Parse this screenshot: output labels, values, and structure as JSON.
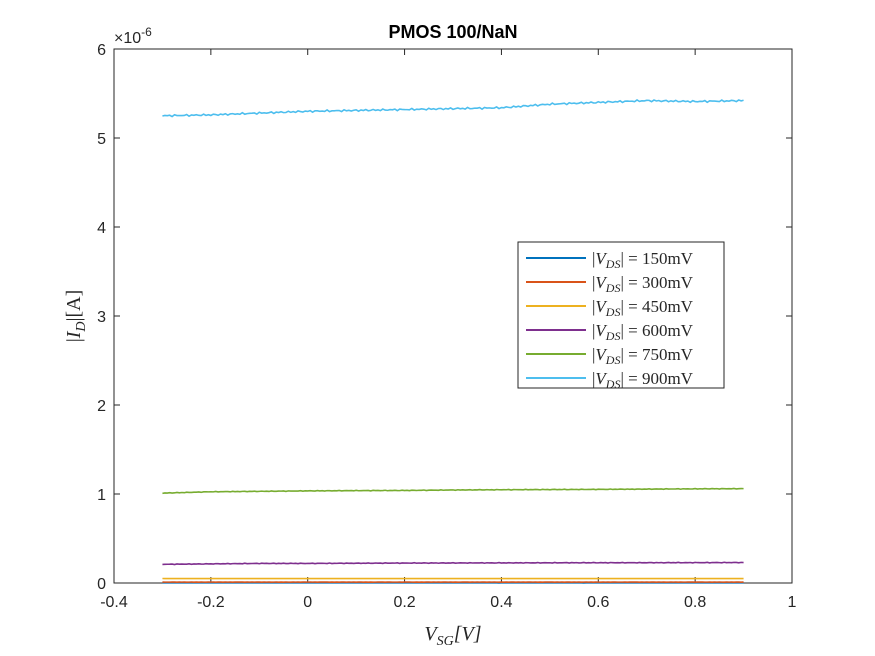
{
  "chart_data": {
    "type": "line",
    "title": "PMOS 100/NaN",
    "xlabel": {
      "main": "V",
      "sub": "SG",
      "unit": "[V]"
    },
    "ylabel": {
      "pre": "|",
      "main": "I",
      "sub": "D",
      "post": "|[A]"
    },
    "xlim": [
      -0.4,
      1
    ],
    "ylim": [
      0,
      6e-06
    ],
    "xticks": [
      -0.4,
      -0.2,
      0,
      0.2,
      0.4,
      0.6,
      0.8,
      1
    ],
    "xtick_labels": [
      "-0.4",
      "-0.2",
      "0",
      "0.2",
      "0.4",
      "0.6",
      "0.8",
      "1"
    ],
    "yticks": [
      0,
      1,
      2,
      3,
      4,
      5,
      6
    ],
    "ytick_labels": [
      "0",
      "1",
      "2",
      "3",
      "4",
      "5",
      "6"
    ],
    "y_exponent": {
      "base": "×10",
      "exp": "-6"
    },
    "grid": false,
    "legend_position": "right",
    "x": [
      -0.3,
      -0.2,
      -0.1,
      0.0,
      0.1,
      0.2,
      0.3,
      0.4,
      0.5,
      0.6,
      0.7,
      0.8,
      0.9
    ],
    "series": [
      {
        "name": "|V_DS| = 150mV",
        "label": {
          "pre": "|",
          "main": "V",
          "sub": "DS",
          "post": "| = 150mV"
        },
        "color": "#0072BD",
        "values": [
          2e-09,
          2e-09,
          2e-09,
          2e-09,
          2e-09,
          2e-09,
          2e-09,
          2e-09,
          2e-09,
          2e-09,
          2e-09,
          2e-09,
          2e-09
        ]
      },
      {
        "name": "|V_DS| = 300mV",
        "label": {
          "pre": "|",
          "main": "V",
          "sub": "DS",
          "post": "| = 300mV"
        },
        "color": "#D95319",
        "values": [
          1e-08,
          1e-08,
          1e-08,
          1e-08,
          1e-08,
          1e-08,
          1e-08,
          1e-08,
          1e-08,
          1e-08,
          1e-08,
          1e-08,
          1e-08
        ]
      },
      {
        "name": "|V_DS| = 450mV",
        "label": {
          "pre": "|",
          "main": "V",
          "sub": "DS",
          "post": "| = 450mV"
        },
        "color": "#EDB120",
        "values": [
          5e-08,
          5e-08,
          5e-08,
          5e-08,
          5e-08,
          5e-08,
          5e-08,
          5e-08,
          5e-08,
          5e-08,
          5e-08,
          5e-08,
          5e-08
        ]
      },
      {
        "name": "|V_DS| = 600mV",
        "label": {
          "pre": "|",
          "main": "V",
          "sub": "DS",
          "post": "| = 600mV"
        },
        "color": "#7E2F8E",
        "values": [
          2.1e-07,
          2.15e-07,
          2.2e-07,
          2.2e-07,
          2.22e-07,
          2.24e-07,
          2.25e-07,
          2.26e-07,
          2.27e-07,
          2.28e-07,
          2.28e-07,
          2.29e-07,
          2.3e-07
        ]
      },
      {
        "name": "|V_DS| = 750mV",
        "label": {
          "pre": "|",
          "main": "V",
          "sub": "DS",
          "post": "| = 750mV"
        },
        "color": "#77AC30",
        "values": [
          1.01e-06,
          1.025e-06,
          1.03e-06,
          1.035e-06,
          1.038e-06,
          1.04e-06,
          1.045e-06,
          1.048e-06,
          1.05e-06,
          1.052e-06,
          1.055e-06,
          1.058e-06,
          1.06e-06
        ]
      },
      {
        "name": "|V_DS| = 900mV",
        "label": {
          "pre": "|",
          "main": "V",
          "sub": "DS",
          "post": "| = 900mV"
        },
        "color": "#4DBEEE",
        "values": [
          5.25e-06,
          5.26e-06,
          5.28e-06,
          5.3e-06,
          5.31e-06,
          5.32e-06,
          5.33e-06,
          5.34e-06,
          5.38e-06,
          5.4e-06,
          5.42e-06,
          5.41e-06,
          5.42e-06
        ]
      }
    ]
  }
}
